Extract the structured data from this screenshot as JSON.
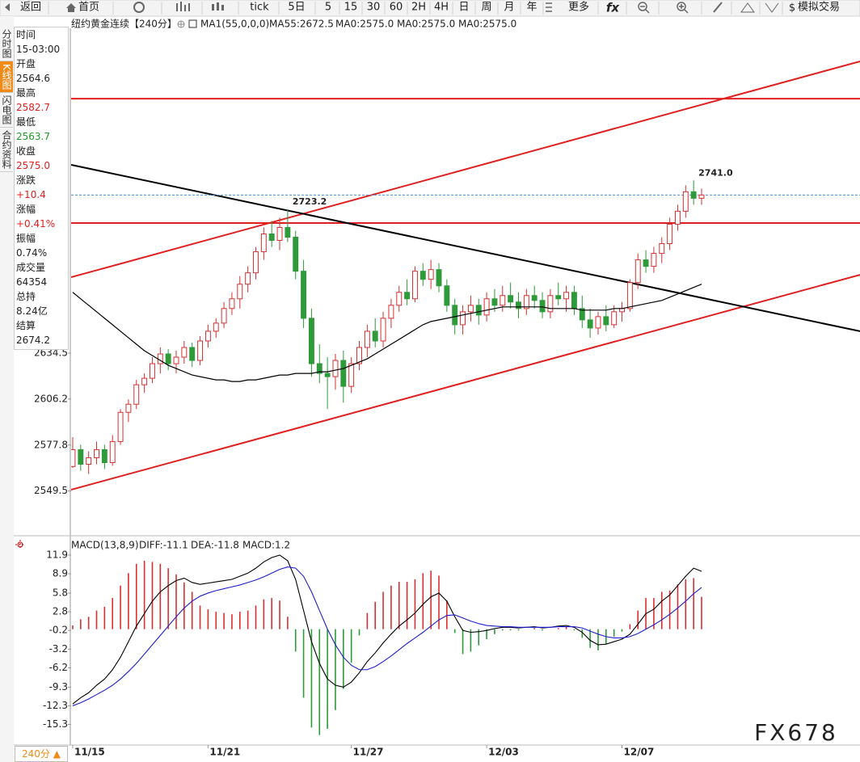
{
  "toolbar": {
    "items": [
      "返回",
      "首页",
      "tick",
      "5日",
      "5",
      "15",
      "30",
      "60",
      "2H",
      "4H",
      "日",
      "周",
      "月",
      "年",
      "更多",
      "模拟交易"
    ],
    "left_tabs": [
      "分时图",
      "K线图",
      "闪电图",
      "合约资料"
    ],
    "active_tab": 1
  },
  "info_panel": [
    {
      "label": "时间",
      "value": "15-03:00",
      "color": "#222222"
    },
    {
      "label": "开盘",
      "value": "2564.6",
      "color": "#222222"
    },
    {
      "label": "最高",
      "value": "2582.7",
      "color": "#e02020"
    },
    {
      "label": "最低",
      "value": "2563.7",
      "color": "#1f9a2a"
    },
    {
      "label": "收盘",
      "value": "2575.0",
      "color": "#e02020"
    },
    {
      "label": "涨跌",
      "value": "+10.4",
      "color": "#e02020"
    },
    {
      "label": "涨幅",
      "value": "+0.41%",
      "color": "#e02020"
    },
    {
      "label": "振幅",
      "value": "0.74%",
      "color": "#222222"
    },
    {
      "label": "成交量",
      "value": "64354",
      "color": "#222222"
    },
    {
      "label": "总持",
      "value": "8.24亿",
      "color": "#222222"
    },
    {
      "label": "结算",
      "value": "2674.2",
      "color": "#222222"
    }
  ],
  "chart_data": [
    {
      "type": "candlestick",
      "title": "纽约黄金连续",
      "period": "【240分】",
      "legend": [
        {
          "text": "MA1(55,0,0,0)",
          "color": "#000000"
        },
        {
          "text": "MA55:2672.5",
          "color": "#000000"
        },
        {
          "text": "MA0:2575.0",
          "color": "#1f1fd0"
        },
        {
          "text": "MA0:2575.0",
          "color": "#e020e0"
        },
        {
          "text": "MA0:2575.0",
          "color": "#f09020"
        }
      ],
      "open": [
        2564.6,
        2575,
        2566,
        2570,
        2575,
        2567,
        2580,
        2598,
        2603,
        2615,
        2619,
        2628,
        2634,
        2628,
        2632,
        2638,
        2630,
        2642,
        2648,
        2653,
        2662,
        2668,
        2677,
        2684,
        2697,
        2708,
        2704,
        2712,
        2706,
        2685,
        2656,
        2628,
        2622,
        2620,
        2630,
        2614,
        2628,
        2638,
        2648,
        2642,
        2656,
        2664,
        2672,
        2668,
        2685,
        2680,
        2686,
        2676,
        2664,
        2652,
        2660,
        2664,
        2658,
        2668,
        2664,
        2670,
        2666,
        2662,
        2670,
        2667,
        2660,
        2670,
        2668,
        2672,
        2662,
        2655,
        2650,
        2657,
        2652,
        2660,
        2662,
        2678,
        2692,
        2688,
        2696,
        2702,
        2714,
        2722,
        2734,
        2730
      ],
      "high": [
        2582.7,
        2578,
        2574,
        2580,
        2578,
        2584,
        2600,
        2606,
        2618,
        2622,
        2632,
        2638,
        2637,
        2636,
        2642,
        2641,
        2645,
        2652,
        2656,
        2666,
        2672,
        2682,
        2688,
        2700,
        2712,
        2716,
        2718,
        2723.2,
        2710,
        2692,
        2662,
        2640,
        2632,
        2634,
        2636,
        2632,
        2642,
        2652,
        2656,
        2660,
        2668,
        2676,
        2680,
        2688,
        2690,
        2692,
        2690,
        2680,
        2668,
        2664,
        2670,
        2668,
        2672,
        2674,
        2676,
        2678,
        2672,
        2674,
        2676,
        2672,
        2674,
        2678,
        2676,
        2676,
        2670,
        2662,
        2660,
        2664,
        2664,
        2666,
        2680,
        2696,
        2698,
        2700,
        2706,
        2718,
        2726,
        2738,
        2741.0,
        2736
      ],
      "low": [
        2563.7,
        2562,
        2560,
        2566,
        2563,
        2565,
        2578,
        2592,
        2600,
        2610,
        2616,
        2622,
        2624,
        2622,
        2628,
        2626,
        2627,
        2638,
        2644,
        2650,
        2658,
        2662,
        2672,
        2680,
        2692,
        2700,
        2698,
        2703,
        2680,
        2650,
        2620,
        2616,
        2600,
        2612,
        2604,
        2610,
        2624,
        2632,
        2638,
        2638,
        2650,
        2660,
        2664,
        2666,
        2676,
        2674,
        2672,
        2660,
        2646,
        2646,
        2654,
        2652,
        2654,
        2660,
        2660,
        2662,
        2656,
        2658,
        2662,
        2656,
        2656,
        2664,
        2660,
        2658,
        2650,
        2644,
        2646,
        2648,
        2650,
        2654,
        2660,
        2674,
        2684,
        2684,
        2690,
        2698,
        2710,
        2718,
        2726,
        2726
      ],
      "close": [
        2575.0,
        2566,
        2570,
        2575,
        2567,
        2580,
        2598,
        2603,
        2615,
        2619,
        2628,
        2634,
        2628,
        2632,
        2638,
        2630,
        2642,
        2648,
        2653,
        2662,
        2668,
        2677,
        2684,
        2697,
        2708,
        2704,
        2712,
        2706,
        2685,
        2656,
        2628,
        2622,
        2620,
        2630,
        2614,
        2628,
        2638,
        2648,
        2642,
        2656,
        2664,
        2672,
        2668,
        2685,
        2680,
        2686,
        2676,
        2664,
        2652,
        2660,
        2664,
        2658,
        2668,
        2664,
        2670,
        2666,
        2662,
        2670,
        2667,
        2660,
        2670,
        2668,
        2672,
        2662,
        2655,
        2650,
        2657,
        2652,
        2660,
        2662,
        2678,
        2692,
        2688,
        2696,
        2702,
        2714,
        2722,
        2734,
        2730,
        2732
      ],
      "up_color": "#d83030",
      "down_color": "#2e9a3a",
      "last_color": "#4a90d9",
      "series": [
        {
          "name": "MA55",
          "color": "#000000",
          "values": [
            2672,
            2668,
            2664,
            2660,
            2656,
            2652,
            2648,
            2644,
            2640,
            2636,
            2633,
            2630,
            2627,
            2625,
            2623,
            2621,
            2620,
            2619,
            2618,
            2618,
            2617,
            2617,
            2618,
            2618,
            2619,
            2620,
            2621,
            2621,
            2622,
            2622,
            2622,
            2623,
            2623,
            2624,
            2625,
            2627,
            2629,
            2631,
            2634,
            2637,
            2640,
            2643,
            2646,
            2649,
            2652,
            2654,
            2655,
            2656,
            2657,
            2658,
            2659,
            2660,
            2661,
            2662,
            2663,
            2663,
            2663,
            2663,
            2663,
            2663,
            2662,
            2662,
            2662,
            2662,
            2661,
            2661,
            2661,
            2661,
            2662,
            2662,
            2663,
            2664,
            2665,
            2666,
            2667,
            2669,
            2671,
            2673,
            2675,
            2677
          ]
        }
      ],
      "xlim": [
        -0.2,
        98.9
      ],
      "ylim": [
        2523.4,
        2834.8
      ],
      "yticks": [
        2549.5,
        2577.8,
        2606.2,
        2634.5
      ],
      "annotations": [
        {
          "index": 27,
          "label": "2723.2"
        },
        {
          "index": 78,
          "label": "2741.0"
        }
      ],
      "hlines": [
        {
          "value": 2791.4,
          "color": "#e02020"
        },
        {
          "value": 2714.7,
          "color": "#e02020"
        }
      ],
      "trendlines": [
        {
          "color": "#e02020",
          "x": [
            -0.2,
            98.9
          ],
          "y": [
            2681.3,
            2814.4
          ]
        },
        {
          "color": "#e02020",
          "x": [
            -0.2,
            98.9
          ],
          "y": [
            2550.3,
            2682.8
          ]
        },
        {
          "color": "#000000",
          "x": [
            -0.2,
            98.9
          ],
          "y": [
            2750.6,
            2648.0
          ]
        }
      ]
    },
    {
      "type": "macd",
      "title": "MACD(13,8,9)",
      "legend": [
        {
          "text": "DIFF:-11.1",
          "color": "#000000"
        },
        {
          "text": "DEA:-11.8",
          "color": "#1f1fd0"
        },
        {
          "text": "MACD:1.2",
          "color": "#e020e0"
        }
      ],
      "series": [
        {
          "name": "DIFF",
          "color": "#000000",
          "values": [
            -12.0,
            -11.0,
            -10.2,
            -9.0,
            -8.0,
            -6.5,
            -4.5,
            -2.0,
            0.5,
            2.5,
            4.5,
            6.0,
            7.0,
            7.8,
            8.2,
            7.5,
            7.2,
            7.4,
            7.6,
            7.8,
            8.0,
            8.5,
            9.0,
            9.8,
            10.8,
            11.5,
            11.9,
            11.0,
            8.0,
            3.0,
            -2.0,
            -5.5,
            -8.0,
            -9.0,
            -9.3,
            -8.5,
            -7.0,
            -5.2,
            -3.8,
            -2.2,
            -0.8,
            0.5,
            1.5,
            2.6,
            4.0,
            5.2,
            5.8,
            4.5,
            2.0,
            -0.2,
            -0.5,
            -0.4,
            -0.2,
            0.1,
            0.3,
            0.3,
            0.2,
            0.3,
            0.4,
            0.2,
            0.3,
            0.5,
            0.6,
            0.3,
            -0.5,
            -1.8,
            -2.5,
            -2.4,
            -2.0,
            -1.6,
            -0.8,
            0.8,
            2.5,
            3.2,
            4.5,
            5.5,
            7.0,
            8.5,
            9.8,
            9.3
          ]
        },
        {
          "name": "DEA",
          "color": "#1f1fd0",
          "values": [
            -12.3,
            -11.8,
            -11.2,
            -10.5,
            -9.8,
            -9.0,
            -8.0,
            -6.8,
            -5.5,
            -4.0,
            -2.5,
            -1.0,
            0.5,
            2.0,
            3.4,
            4.5,
            5.3,
            5.8,
            6.2,
            6.5,
            6.8,
            7.1,
            7.5,
            7.9,
            8.4,
            9.0,
            9.6,
            10.0,
            9.8,
            8.5,
            6.0,
            3.0,
            0.0,
            -2.5,
            -4.5,
            -5.8,
            -6.5,
            -6.5,
            -6.0,
            -5.2,
            -4.3,
            -3.3,
            -2.3,
            -1.4,
            -0.5,
            0.5,
            1.5,
            2.2,
            2.3,
            1.8,
            1.3,
            0.9,
            0.6,
            0.5,
            0.4,
            0.4,
            0.3,
            0.3,
            0.3,
            0.3,
            0.3,
            0.4,
            0.4,
            0.4,
            0.2,
            -0.3,
            -0.8,
            -1.2,
            -1.4,
            -1.4,
            -1.2,
            -0.7,
            0.0,
            0.7,
            1.5,
            2.4,
            3.4,
            4.5,
            5.7,
            6.7
          ]
        }
      ],
      "histogram": [
        0.6,
        1.6,
        2.0,
        3.0,
        3.6,
        5.0,
        7.0,
        9.0,
        10.5,
        11.0,
        10.8,
        10.5,
        9.8,
        8.8,
        7.5,
        6.0,
        3.8,
        3.2,
        2.8,
        2.6,
        2.4,
        2.8,
        3.0,
        3.8,
        4.8,
        5.0,
        4.6,
        2.0,
        -3.6,
        -11.0,
        -15.8,
        -17.0,
        -16.0,
        -13.0,
        -9.6,
        -5.4,
        -1.0,
        2.6,
        4.4,
        6.0,
        7.0,
        7.6,
        7.6,
        8.0,
        9.0,
        9.4,
        8.6,
        4.6,
        -0.6,
        -4.0,
        -3.6,
        -2.6,
        -1.6,
        -0.8,
        -0.2,
        -0.2,
        -0.2,
        0.0,
        0.2,
        -0.2,
        0.0,
        0.2,
        0.4,
        -0.2,
        -1.4,
        -3.0,
        -3.4,
        -2.4,
        -1.2,
        -0.4,
        0.8,
        3.0,
        5.0,
        5.0,
        6.0,
        6.2,
        7.2,
        8.0,
        8.2,
        5.2
      ],
      "up_color": "#d83030",
      "down_color": "#2e9a3a",
      "xlim": [
        -0.2,
        98.9
      ],
      "ylim": [
        -18.6,
        12.8
      ],
      "yticks": [
        11.9,
        8.9,
        5.8,
        2.8,
        -0.2,
        -3.2,
        -6.2,
        -9.3,
        -12.3,
        -15.3
      ],
      "xticks": [
        {
          "value": 0,
          "label": "11/15"
        },
        {
          "value": 17,
          "label": "11/21"
        },
        {
          "value": 35,
          "label": "11/27"
        },
        {
          "value": 52,
          "label": "12/03"
        },
        {
          "value": 69,
          "label": "12/07"
        }
      ]
    }
  ],
  "footer": {
    "period": "240分 ▲",
    "watermark": "FX678"
  }
}
